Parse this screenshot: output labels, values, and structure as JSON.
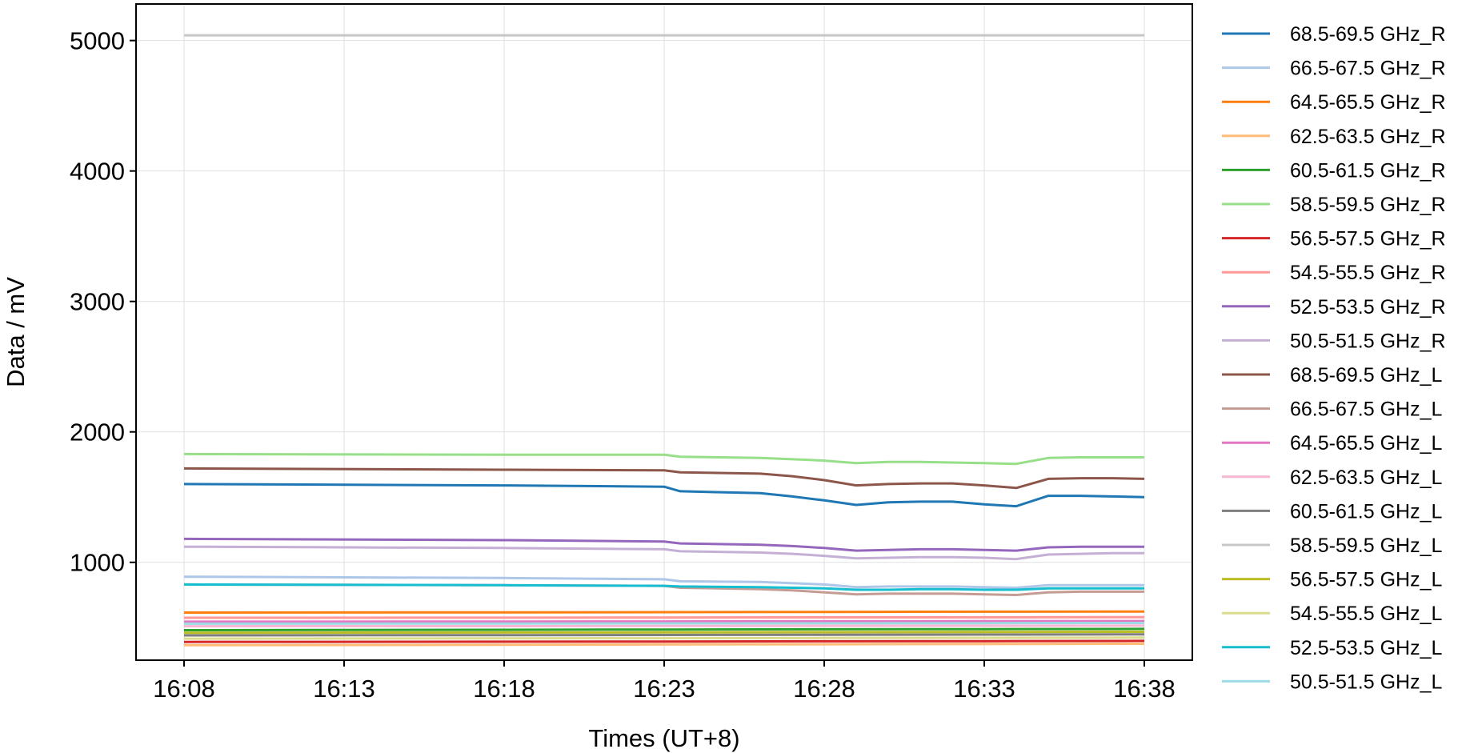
{
  "chart_data": {
    "type": "line",
    "xlabel": "Times (UT+8)",
    "ylabel": "Data / mV",
    "xlim": [
      "16:06:30",
      "16:39:30"
    ],
    "ylim": [
      250,
      5280
    ],
    "x_ticks": [
      "16:08",
      "16:13",
      "16:18",
      "16:23",
      "16:28",
      "16:33",
      "16:38"
    ],
    "y_ticks": [
      1000,
      2000,
      3000,
      4000,
      5000
    ],
    "grid": true,
    "legend_position": "outside-right",
    "series": [
      {
        "name": "68.5-69.5 GHz_R",
        "color": "#1f77b4",
        "x": [
          "16:08",
          "16:18",
          "16:23",
          "16:23:30",
          "16:26",
          "16:27",
          "16:28",
          "16:29",
          "16:30",
          "16:31",
          "16:32",
          "16:33",
          "16:34",
          "16:35",
          "16:36",
          "16:37",
          "16:38"
        ],
        "values": [
          1600,
          1590,
          1580,
          1545,
          1530,
          1505,
          1475,
          1440,
          1460,
          1465,
          1465,
          1445,
          1430,
          1510,
          1510,
          1505,
          1500
        ]
      },
      {
        "name": "66.5-67.5 GHz_R",
        "color": "#aec7e8",
        "x": [
          "16:08",
          "16:18",
          "16:23",
          "16:23:30",
          "16:26",
          "16:27",
          "16:28",
          "16:29",
          "16:30",
          "16:31",
          "16:32",
          "16:33",
          "16:34",
          "16:35",
          "16:36",
          "16:37",
          "16:38"
        ],
        "values": [
          890,
          880,
          870,
          855,
          850,
          840,
          830,
          810,
          815,
          815,
          815,
          810,
          805,
          825,
          825,
          825,
          825
        ]
      },
      {
        "name": "64.5-65.5 GHz_R",
        "color": "#ff7f0e",
        "x": [
          "16:08",
          "16:18",
          "16:23",
          "16:28",
          "16:33",
          "16:38"
        ],
        "values": [
          615,
          617,
          618,
          620,
          622,
          623
        ]
      },
      {
        "name": "62.5-63.5 GHz_R",
        "color": "#ffbb78",
        "x": [
          "16:08",
          "16:18",
          "16:23",
          "16:28",
          "16:33",
          "16:38"
        ],
        "values": [
          365,
          368,
          370,
          372,
          374,
          376
        ]
      },
      {
        "name": "60.5-61.5 GHz_R",
        "color": "#2ca02c",
        "x": [
          "16:08",
          "16:18",
          "16:23",
          "16:28",
          "16:33",
          "16:38"
        ],
        "values": [
          480,
          483,
          485,
          487,
          488,
          490
        ]
      },
      {
        "name": "58.5-59.5 GHz_R",
        "color": "#98df8a",
        "x": [
          "16:08",
          "16:18",
          "16:23",
          "16:23:30",
          "16:26",
          "16:27",
          "16:28",
          "16:29",
          "16:30",
          "16:31",
          "16:32",
          "16:33",
          "16:34",
          "16:35",
          "16:36",
          "16:37",
          "16:38"
        ],
        "values": [
          1830,
          1825,
          1825,
          1810,
          1800,
          1790,
          1780,
          1760,
          1770,
          1770,
          1765,
          1760,
          1755,
          1800,
          1805,
          1805,
          1805
        ]
      },
      {
        "name": "56.5-57.5 GHz_R",
        "color": "#d62728",
        "x": [
          "16:08",
          "16:18",
          "16:23",
          "16:28",
          "16:33",
          "16:38"
        ],
        "values": [
          390,
          392,
          393,
          395,
          396,
          398
        ]
      },
      {
        "name": "54.5-55.5 GHz_R",
        "color": "#ff9896",
        "x": [
          "16:08",
          "16:18",
          "16:23",
          "16:28",
          "16:33",
          "16:38"
        ],
        "values": [
          575,
          576,
          577,
          578,
          579,
          580
        ]
      },
      {
        "name": "52.5-53.5 GHz_R",
        "color": "#9467bd",
        "x": [
          "16:08",
          "16:18",
          "16:23",
          "16:23:30",
          "16:26",
          "16:27",
          "16:28",
          "16:29",
          "16:30",
          "16:31",
          "16:32",
          "16:33",
          "16:34",
          "16:35",
          "16:36",
          "16:37",
          "16:38"
        ],
        "values": [
          1180,
          1170,
          1160,
          1145,
          1135,
          1125,
          1110,
          1090,
          1095,
          1100,
          1100,
          1095,
          1090,
          1115,
          1120,
          1120,
          1120
        ]
      },
      {
        "name": "50.5-51.5 GHz_R",
        "color": "#c5b0d5",
        "x": [
          "16:08",
          "16:18",
          "16:23",
          "16:23:30",
          "16:26",
          "16:27",
          "16:28",
          "16:29",
          "16:30",
          "16:31",
          "16:32",
          "16:33",
          "16:34",
          "16:35",
          "16:36",
          "16:37",
          "16:38"
        ],
        "values": [
          1120,
          1110,
          1100,
          1085,
          1075,
          1065,
          1050,
          1030,
          1035,
          1040,
          1040,
          1035,
          1025,
          1060,
          1065,
          1070,
          1070
        ]
      },
      {
        "name": "68.5-69.5 GHz_L",
        "color": "#8c564b",
        "x": [
          "16:08",
          "16:18",
          "16:23",
          "16:23:30",
          "16:26",
          "16:27",
          "16:28",
          "16:29",
          "16:30",
          "16:31",
          "16:32",
          "16:33",
          "16:34",
          "16:35",
          "16:36",
          "16:37",
          "16:38"
        ],
        "values": [
          1720,
          1710,
          1705,
          1690,
          1680,
          1660,
          1630,
          1590,
          1600,
          1605,
          1605,
          1590,
          1570,
          1640,
          1645,
          1645,
          1640
        ]
      },
      {
        "name": "66.5-67.5 GHz_L",
        "color": "#c49c94",
        "x": [
          "16:08",
          "16:18",
          "16:23",
          "16:23:30",
          "16:26",
          "16:27",
          "16:28",
          "16:29",
          "16:30",
          "16:31",
          "16:32",
          "16:33",
          "16:34",
          "16:35",
          "16:36",
          "16:37",
          "16:38"
        ],
        "values": [
          830,
          825,
          820,
          805,
          795,
          785,
          770,
          755,
          760,
          760,
          760,
          755,
          750,
          770,
          775,
          775,
          775
        ]
      },
      {
        "name": "64.5-65.5 GHz_L",
        "color": "#e377c2",
        "x": [
          "16:08",
          "16:18",
          "16:23",
          "16:28",
          "16:33",
          "16:38"
        ],
        "values": [
          545,
          546,
          547,
          548,
          549,
          550
        ]
      },
      {
        "name": "62.5-63.5 GHz_L",
        "color": "#f7b6d2",
        "x": [
          "16:08",
          "16:18",
          "16:23",
          "16:28",
          "16:33",
          "16:38"
        ],
        "values": [
          510,
          511,
          512,
          513,
          514,
          515
        ]
      },
      {
        "name": "60.5-61.5 GHz_L",
        "color": "#7f7f7f",
        "x": [
          "16:08",
          "16:18",
          "16:23",
          "16:28",
          "16:33",
          "16:38"
        ],
        "values": [
          440,
          442,
          443,
          445,
          446,
          448
        ]
      },
      {
        "name": "58.5-59.5 GHz_L",
        "color": "#c7c7c7",
        "x": [
          "16:08",
          "16:18",
          "16:23",
          "16:28",
          "16:33",
          "16:38"
        ],
        "values": [
          5040,
          5040,
          5040,
          5040,
          5040,
          5040
        ]
      },
      {
        "name": "56.5-57.5 GHz_L",
        "color": "#bcbd22",
        "x": [
          "16:08",
          "16:18",
          "16:23",
          "16:28",
          "16:33",
          "16:38"
        ],
        "values": [
          460,
          462,
          463,
          465,
          466,
          468
        ]
      },
      {
        "name": "54.5-55.5 GHz_L",
        "color": "#dbdb8d",
        "x": [
          "16:08",
          "16:18",
          "16:23",
          "16:28",
          "16:33",
          "16:38"
        ],
        "values": [
          415,
          417,
          418,
          420,
          421,
          423
        ]
      },
      {
        "name": "52.5-53.5 GHz_L",
        "color": "#17becf",
        "x": [
          "16:08",
          "16:18",
          "16:23",
          "16:23:30",
          "16:26",
          "16:27",
          "16:28",
          "16:29",
          "16:30",
          "16:31",
          "16:32",
          "16:33",
          "16:34",
          "16:35",
          "16:36",
          "16:37",
          "16:38"
        ],
        "values": [
          830,
          825,
          820,
          815,
          810,
          805,
          800,
          790,
          790,
          795,
          795,
          790,
          790,
          800,
          800,
          800,
          800
        ]
      },
      {
        "name": "50.5-51.5 GHz_L",
        "color": "#9edae5",
        "x": [
          "16:08",
          "16:18",
          "16:23",
          "16:28",
          "16:33",
          "16:38"
        ],
        "values": [
          530,
          531,
          532,
          533,
          534,
          535
        ]
      }
    ]
  }
}
